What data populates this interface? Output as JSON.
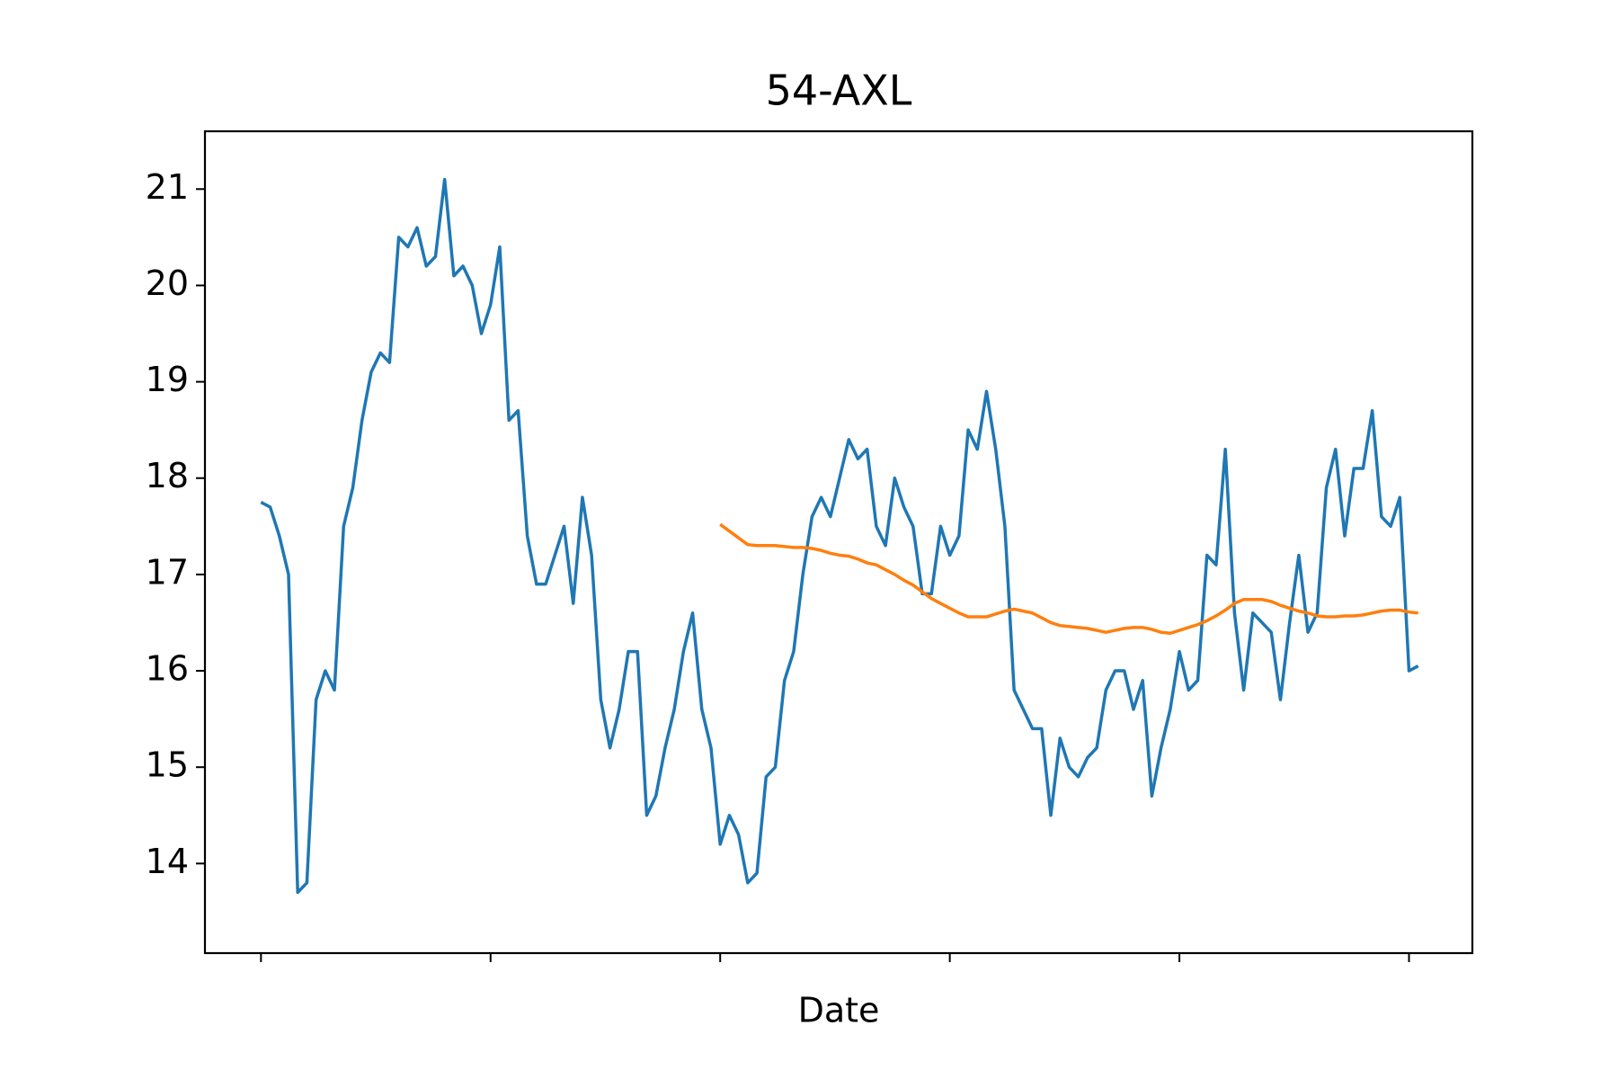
{
  "chart_data": {
    "type": "line",
    "title": "54-AXL",
    "x_label": "Date",
    "x": [
      0,
      1,
      2,
      3,
      4,
      5,
      6,
      7,
      8,
      9,
      10,
      11,
      12,
      13,
      14,
      15,
      16,
      17,
      18,
      19,
      20,
      21,
      22,
      23,
      24,
      25,
      26,
      27,
      28,
      29,
      30,
      31,
      32,
      33,
      34,
      35,
      36,
      37,
      38,
      39,
      40,
      41,
      42,
      43,
      44,
      45,
      46,
      47,
      48,
      49,
      50,
      51,
      52,
      53,
      54,
      55,
      56,
      57,
      58,
      59,
      60,
      61,
      62,
      63,
      64,
      65,
      66,
      67,
      68,
      69,
      70,
      71,
      72,
      73,
      74,
      75,
      76,
      77,
      78,
      79,
      80,
      81,
      82,
      83,
      84,
      85,
      86,
      87,
      88,
      89,
      90,
      91,
      92,
      93,
      94,
      95,
      96,
      97,
      98,
      99,
      100,
      101,
      102,
      103,
      104,
      105,
      106,
      107,
      108,
      109,
      110,
      111,
      112,
      113,
      114,
      115,
      116,
      117,
      118,
      119,
      120,
      121,
      122,
      123,
      124,
      125,
      126
    ],
    "series": [
      {
        "color": "#1f77b4",
        "values": [
          17.75,
          17.7,
          17.4,
          17.0,
          13.7,
          13.8,
          15.7,
          16.0,
          15.8,
          17.5,
          17.9,
          18.6,
          19.1,
          19.3,
          19.2,
          20.5,
          20.4,
          20.6,
          20.2,
          20.3,
          21.1,
          20.1,
          20.2,
          20.0,
          19.5,
          19.8,
          20.4,
          18.6,
          18.7,
          17.4,
          16.9,
          16.9,
          17.2,
          17.5,
          16.7,
          17.8,
          17.2,
          15.7,
          15.2,
          15.6,
          16.2,
          16.2,
          14.5,
          14.7,
          15.2,
          15.6,
          16.2,
          16.6,
          15.6,
          15.2,
          14.2,
          14.5,
          14.3,
          13.8,
          13.9,
          14.9,
          15.0,
          15.9,
          16.2,
          17.0,
          17.6,
          17.8,
          17.6,
          18.0,
          18.4,
          18.2,
          18.3,
          17.5,
          17.3,
          18.0,
          17.7,
          17.5,
          16.8,
          16.8,
          17.5,
          17.2,
          17.4,
          18.5,
          18.3,
          18.9,
          18.3,
          17.5,
          15.8,
          15.6,
          15.4,
          15.4,
          14.5,
          15.3,
          15.0,
          14.9,
          15.1,
          15.2,
          15.8,
          16.0,
          16.0,
          15.6,
          15.9,
          14.7,
          15.2,
          15.6,
          16.2,
          15.8,
          15.9,
          17.2,
          17.1,
          18.3,
          16.6,
          15.8,
          16.6,
          16.5,
          16.4,
          15.7,
          16.5,
          17.2,
          16.4,
          16.6,
          17.9,
          18.3,
          17.4,
          18.1,
          18.1,
          18.7,
          17.6,
          17.5,
          17.8,
          16.0,
          16.05
        ]
      },
      {
        "color": "#ff7f0e",
        "values": [
          null,
          null,
          null,
          null,
          null,
          null,
          null,
          null,
          null,
          null,
          null,
          null,
          null,
          null,
          null,
          null,
          null,
          null,
          null,
          null,
          null,
          null,
          null,
          null,
          null,
          null,
          null,
          null,
          null,
          null,
          null,
          null,
          null,
          null,
          null,
          null,
          null,
          null,
          null,
          null,
          null,
          null,
          null,
          null,
          null,
          null,
          null,
          null,
          null,
          null,
          17.52,
          17.45,
          17.38,
          17.31,
          17.3,
          17.3,
          17.3,
          17.29,
          17.28,
          17.28,
          17.27,
          17.25,
          17.22,
          17.2,
          17.19,
          17.16,
          17.12,
          17.1,
          17.05,
          17.0,
          16.94,
          16.89,
          16.82,
          16.75,
          16.7,
          16.65,
          16.6,
          16.56,
          16.56,
          16.56,
          16.59,
          16.62,
          16.64,
          16.62,
          16.6,
          16.55,
          16.5,
          16.47,
          16.46,
          16.45,
          16.44,
          16.42,
          16.4,
          16.42,
          16.44,
          16.45,
          16.45,
          16.43,
          16.4,
          16.39,
          16.42,
          16.45,
          16.48,
          16.52,
          16.57,
          16.63,
          16.7,
          16.74,
          16.74,
          16.74,
          16.72,
          16.68,
          16.65,
          16.62,
          16.6,
          16.57,
          16.56,
          16.56,
          16.57,
          16.57,
          16.58,
          16.6,
          16.62,
          16.63,
          16.63,
          16.61,
          16.6
        ]
      }
    ],
    "xlim": [
      -6.1,
      131.9
    ],
    "xticks": [
      0,
      25,
      50,
      75,
      100,
      125
    ],
    "ylim": [
      13.07,
      21.6
    ],
    "yticks": [
      14,
      15,
      16,
      17,
      18,
      19,
      20,
      21
    ]
  }
}
